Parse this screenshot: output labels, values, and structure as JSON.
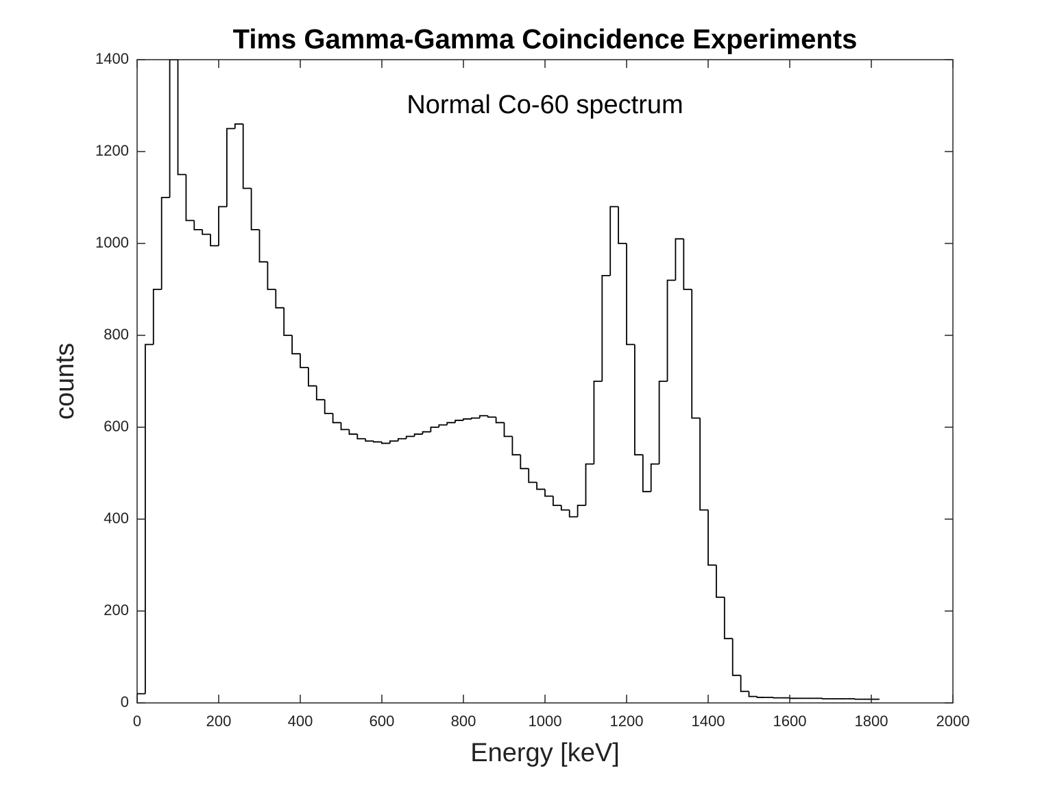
{
  "chart_data": {
    "type": "histogram",
    "title": "Tims Gamma-Gamma Coincidence Experiments",
    "annotation": "Normal Co-60 spectrum",
    "xlabel": "Energy [keV]",
    "ylabel": "counts",
    "color": "#000000",
    "bins": [
      0,
      20,
      40,
      60,
      80,
      100,
      120,
      140,
      160,
      180,
      200,
      220,
      240,
      260,
      280,
      300,
      320,
      340,
      360,
      380,
      400,
      420,
      440,
      460,
      480,
      500,
      520,
      540,
      560,
      580,
      600,
      620,
      640,
      660,
      680,
      700,
      720,
      740,
      760,
      780,
      800,
      820,
      840,
      860,
      880,
      900,
      920,
      940,
      960,
      980,
      1000,
      1020,
      1040,
      1060,
      1080,
      1100,
      1120,
      1140,
      1160,
      1180,
      1200,
      1220,
      1240,
      1260,
      1280,
      1300,
      1320,
      1340,
      1360,
      1380,
      1400,
      1420,
      1440,
      1460,
      1480,
      1500,
      1520,
      1540,
      1560,
      1580,
      1600,
      1620,
      1640,
      1660,
      1680,
      1700,
      1720,
      1740,
      1760,
      1780,
      1800,
      1820
    ],
    "counts": [
      20,
      780,
      900,
      1100,
      1400,
      1150,
      1050,
      1030,
      1020,
      995,
      1080,
      1250,
      1260,
      1120,
      1030,
      960,
      900,
      860,
      800,
      760,
      730,
      690,
      660,
      630,
      610,
      595,
      585,
      575,
      570,
      568,
      565,
      570,
      575,
      580,
      585,
      590,
      600,
      605,
      610,
      615,
      618,
      620,
      625,
      622,
      610,
      580,
      540,
      510,
      480,
      465,
      450,
      430,
      420,
      405,
      430,
      520,
      700,
      930,
      1080,
      1000,
      780,
      540,
      460,
      520,
      700,
      920,
      1010,
      900,
      620,
      420,
      300,
      230,
      140,
      60,
      25,
      14,
      12,
      12,
      11,
      11,
      10,
      10,
      10,
      10,
      9,
      9,
      9,
      9,
      8,
      8,
      8
    ],
    "xlim": [
      0,
      2000
    ],
    "xticks": [
      0,
      200,
      400,
      600,
      800,
      1000,
      1200,
      1400,
      1600,
      1800,
      2000
    ],
    "ylim": [
      0,
      1400
    ],
    "yticks": [
      0,
      200,
      400,
      600,
      800,
      1000,
      1200,
      1400
    ]
  }
}
